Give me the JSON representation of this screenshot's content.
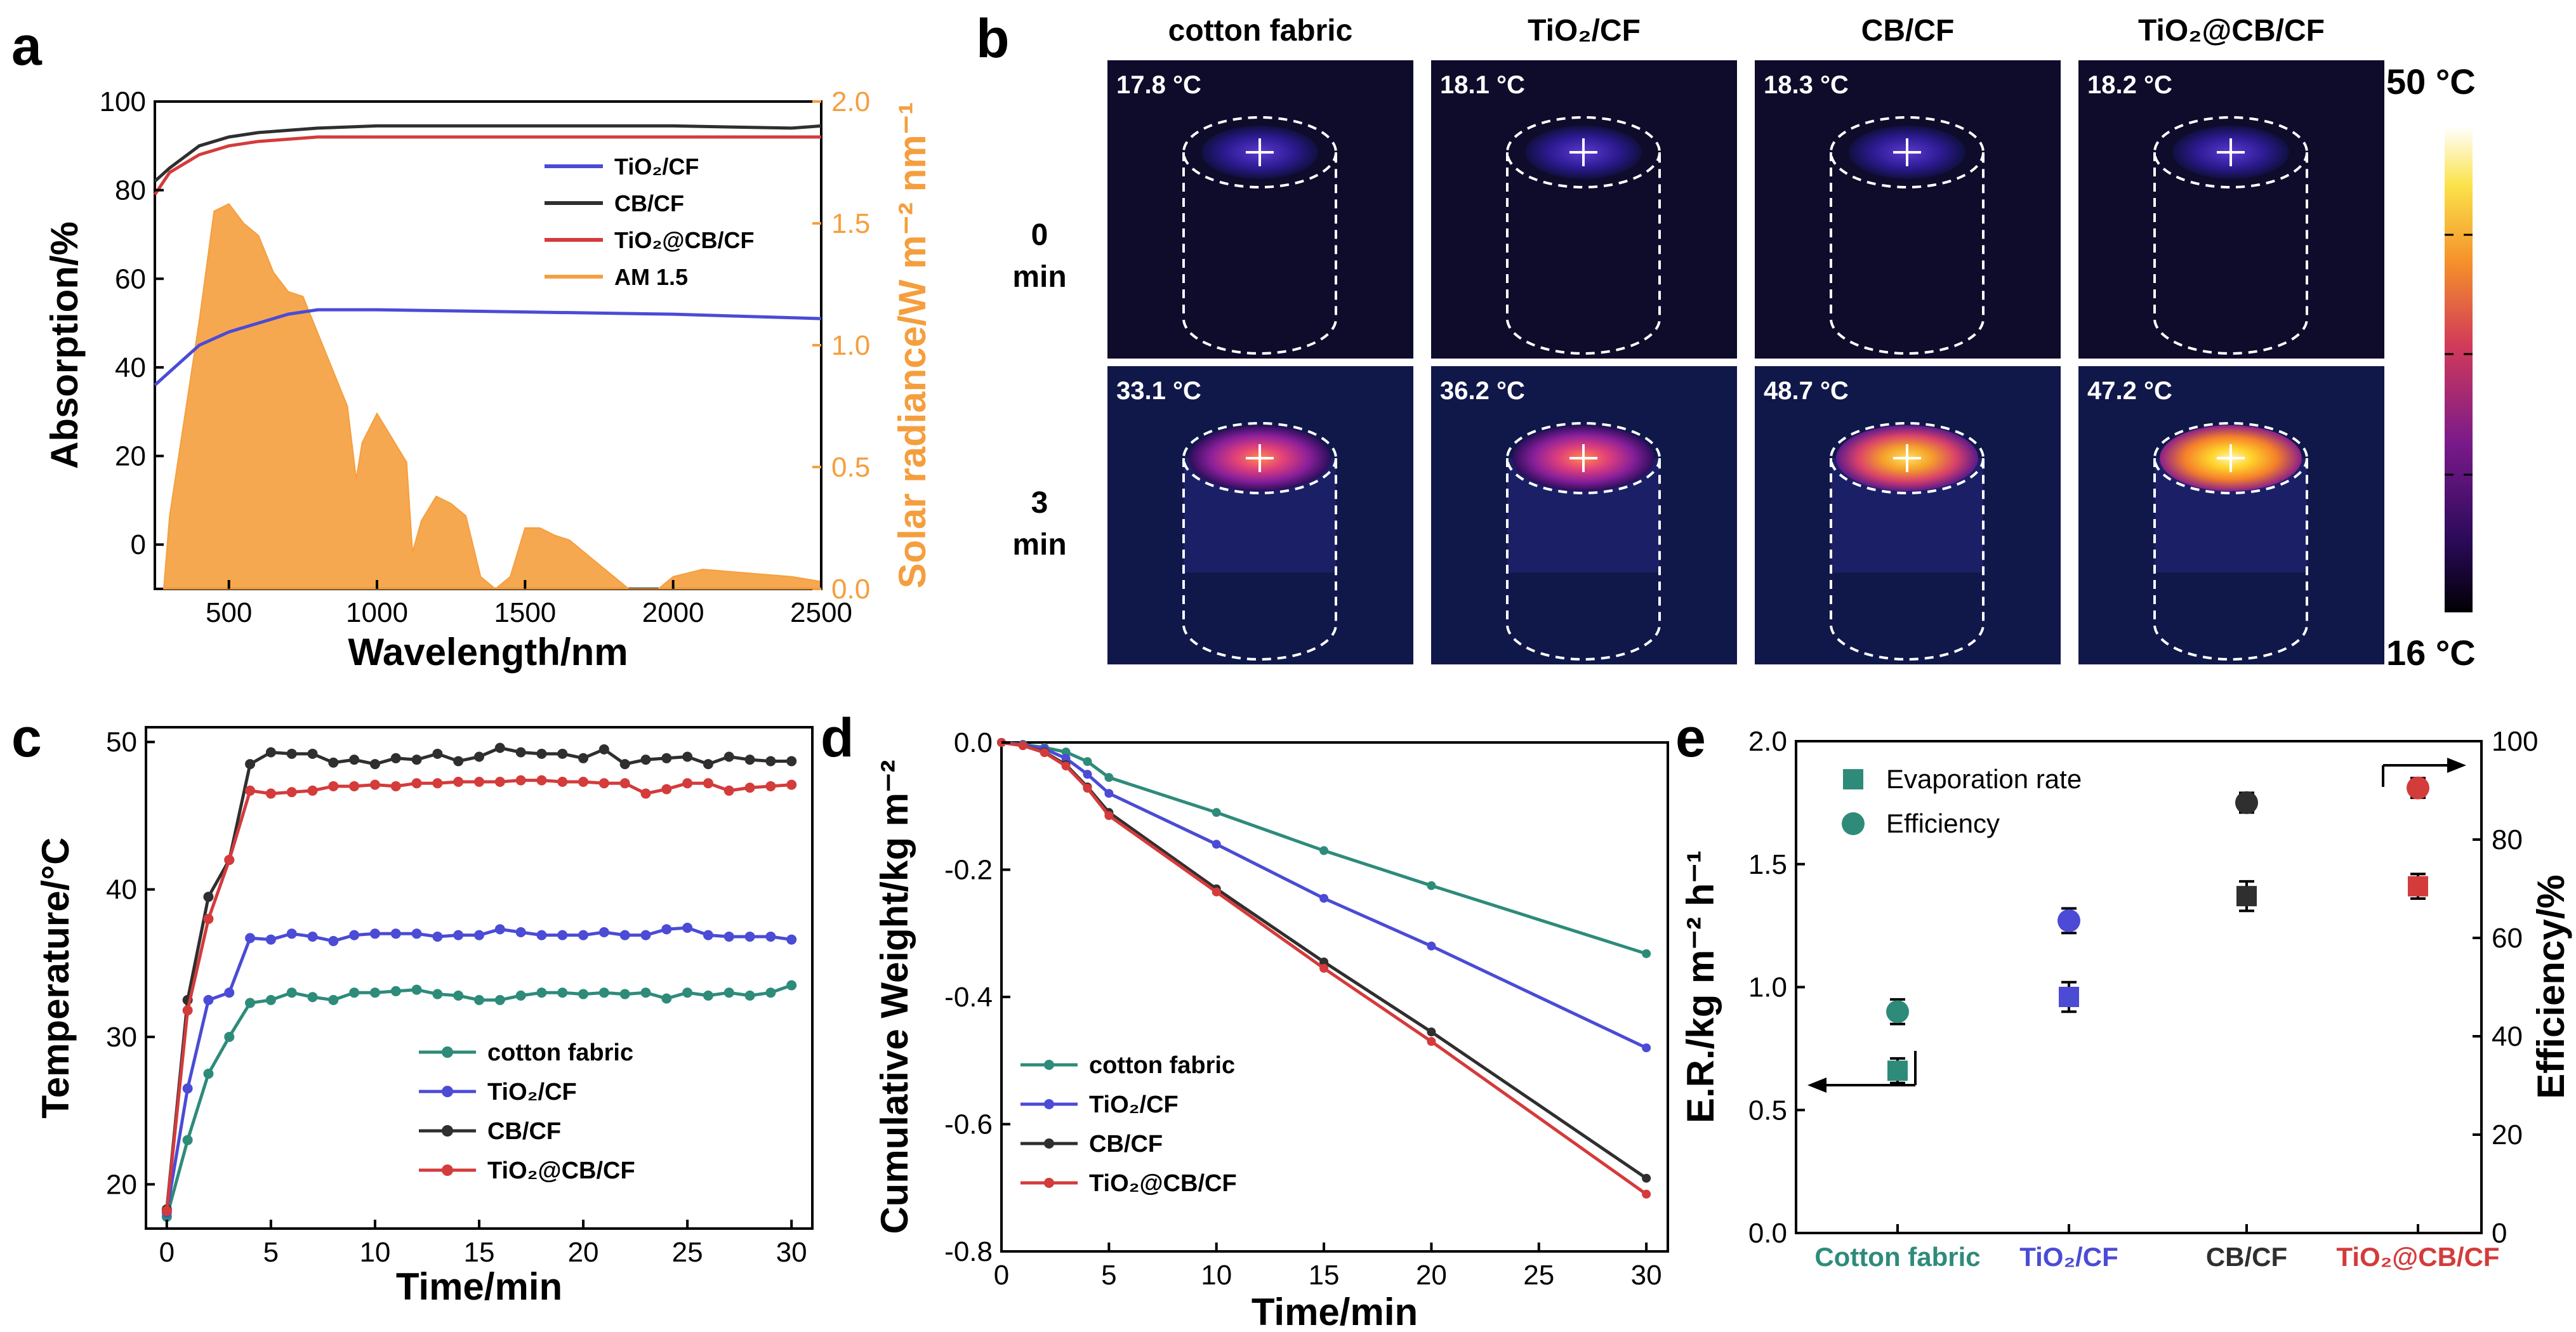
{
  "chart_data": [
    {
      "panel": "a",
      "type": "line",
      "xlabel": "Wavelength/nm",
      "ylabel": "Absorption/%",
      "y2label": "Solar radiance/W m⁻² nm⁻¹",
      "xlim": [
        250,
        2500
      ],
      "ylim": [
        -10,
        100
      ],
      "y2lim": [
        0,
        2.0
      ],
      "xticks": [
        "500",
        "1000",
        "1500",
        "2000",
        "2500"
      ],
      "yticks": [
        "0",
        "20",
        "40",
        "60",
        "80",
        "100"
      ],
      "y2ticks": [
        "0.0",
        "0.5",
        "1.0",
        "1.5",
        "2.0"
      ],
      "legend": [
        "TiO₂/CF",
        "CB/CF",
        "TiO₂@CB/CF",
        "AM 1.5"
      ],
      "series": [
        {
          "name": "TiO₂/CF",
          "color": "#4b4bd6",
          "x": [
            250,
            300,
            400,
            500,
            600,
            700,
            800,
            1000,
            1500,
            2000,
            2500
          ],
          "values": [
            36,
            39,
            45,
            48,
            50,
            52,
            53,
            53,
            52.5,
            52,
            51
          ]
        },
        {
          "name": "CB/CF",
          "color": "#2f2f2f",
          "x": [
            250,
            300,
            400,
            500,
            600,
            800,
            1000,
            1500,
            2000,
            2400,
            2500
          ],
          "values": [
            82,
            85,
            90,
            92,
            93,
            94,
            94.5,
            94.5,
            94.5,
            94,
            94.5
          ]
        },
        {
          "name": "TiO₂@CB/CF",
          "color": "#d43b3b",
          "x": [
            250,
            300,
            400,
            500,
            600,
            800,
            1000,
            1500,
            2000,
            2500
          ],
          "values": [
            79,
            84,
            88,
            90,
            91,
            92,
            92,
            92,
            92,
            92
          ]
        },
        {
          "name": "AM 1.5",
          "color": "#f59e3d",
          "x": [
            280,
            300,
            350,
            400,
            450,
            500,
            550,
            600,
            650,
            700,
            750,
            800,
            850,
            900,
            930,
            950,
            1000,
            1050,
            1100,
            1120,
            1150,
            1200,
            1250,
            1300,
            1350,
            1400,
            1450,
            1500,
            1550,
            1600,
            1650,
            1700,
            1750,
            1800,
            1850,
            1950,
            2000,
            2100,
            2200,
            2300,
            2400,
            2500
          ],
          "values": [
            0,
            0.3,
            0.7,
            1.1,
            1.55,
            1.58,
            1.5,
            1.45,
            1.3,
            1.22,
            1.2,
            1.05,
            0.9,
            0.75,
            0.45,
            0.6,
            0.72,
            0.62,
            0.52,
            0.15,
            0.28,
            0.38,
            0.35,
            0.3,
            0.05,
            0,
            0.05,
            0.25,
            0.25,
            0.22,
            0.2,
            0.15,
            0.1,
            0.05,
            0,
            0,
            0.05,
            0.08,
            0.07,
            0.06,
            0.05,
            0.03
          ]
        }
      ]
    },
    {
      "panel": "c",
      "type": "line",
      "xlabel": "Time/min",
      "ylabel": "Temperature/°C",
      "xlim": [
        -1,
        31
      ],
      "ylim": [
        17,
        51
      ],
      "xticks": [
        "0",
        "5",
        "10",
        "15",
        "20",
        "25",
        "30"
      ],
      "yticks": [
        "20",
        "30",
        "40",
        "50"
      ],
      "legend": [
        "cotton fabric",
        "TiO₂/CF",
        "CB/CF",
        "TiO₂@CB/CF"
      ],
      "x": [
        0,
        1,
        2,
        3,
        4,
        5,
        6,
        7,
        8,
        9,
        10,
        11,
        12,
        13,
        14,
        15,
        16,
        17,
        18,
        19,
        20,
        21,
        22,
        23,
        24,
        25,
        26,
        27,
        28,
        29,
        30
      ],
      "series": [
        {
          "name": "cotton fabric",
          "color": "#2e8b7a",
          "values": [
            17.8,
            23,
            27.5,
            30,
            32.3,
            32.5,
            33,
            32.7,
            32.5,
            33,
            33,
            33.1,
            33.2,
            32.9,
            32.8,
            32.5,
            32.5,
            32.8,
            33,
            33,
            32.9,
            33,
            32.9,
            33,
            32.6,
            33,
            32.8,
            33,
            32.8,
            33,
            33.5
          ]
        },
        {
          "name": "TiO₂/CF",
          "color": "#4b4bd6",
          "values": [
            18.1,
            26.5,
            32.5,
            33,
            36.7,
            36.6,
            37,
            36.8,
            36.5,
            36.9,
            37,
            37,
            37,
            36.8,
            36.9,
            36.9,
            37.3,
            37.1,
            36.9,
            36.9,
            36.9,
            37.1,
            36.9,
            36.9,
            37.3,
            37.4,
            36.9,
            36.8,
            36.8,
            36.8,
            36.6
          ]
        },
        {
          "name": "CB/CF",
          "color": "#2f2f2f",
          "values": [
            18.3,
            32.5,
            39.5,
            42,
            48.5,
            49.3,
            49.2,
            49.2,
            48.6,
            48.8,
            48.5,
            48.9,
            48.8,
            49.2,
            48.7,
            49,
            49.6,
            49.3,
            49.2,
            49.2,
            48.9,
            49.5,
            48.5,
            48.8,
            48.9,
            49,
            48.5,
            49,
            48.8,
            48.7,
            48.7
          ]
        },
        {
          "name": "TiO₂@CB/CF",
          "color": "#d43b3b",
          "values": [
            18.2,
            31.8,
            38,
            42,
            46.7,
            46.5,
            46.6,
            46.7,
            47,
            47,
            47.1,
            47,
            47.2,
            47.2,
            47.3,
            47.3,
            47.3,
            47.4,
            47.4,
            47.3,
            47.3,
            47.2,
            47.2,
            46.5,
            46.8,
            47.2,
            47.2,
            46.7,
            46.9,
            47,
            47.1
          ]
        }
      ]
    },
    {
      "panel": "d",
      "type": "line",
      "xlabel": "Time/min",
      "ylabel": "Cumulative Weight/kg m⁻²",
      "xlim": [
        0,
        31
      ],
      "ylim": [
        -0.8,
        0.0
      ],
      "xticks": [
        "0",
        "5",
        "10",
        "15",
        "20",
        "25",
        "30"
      ],
      "yticks": [
        "0.0",
        "-0.2",
        "-0.4",
        "-0.6",
        "-0.8"
      ],
      "legend": [
        "cotton fabric",
        "TiO₂/CF",
        "CB/CF",
        "TiO₂@CB/CF"
      ],
      "x": [
        0,
        1,
        2,
        3,
        4,
        5,
        10,
        15,
        20,
        30
      ],
      "series": [
        {
          "name": "cotton fabric",
          "color": "#2e8b7a",
          "values": [
            0,
            -0.003,
            -0.008,
            -0.015,
            -0.03,
            -0.055,
            -0.11,
            -0.17,
            -0.225,
            -0.332
          ]
        },
        {
          "name": "TiO₂/CF",
          "color": "#4b4bd6",
          "values": [
            0,
            -0.004,
            -0.01,
            -0.025,
            -0.05,
            -0.08,
            -0.16,
            -0.245,
            -0.32,
            -0.48
          ]
        },
        {
          "name": "CB/CF",
          "color": "#2f2f2f",
          "values": [
            0,
            -0.005,
            -0.015,
            -0.035,
            -0.07,
            -0.11,
            -0.23,
            -0.345,
            -0.455,
            -0.685
          ]
        },
        {
          "name": "TiO₂@CB/CF",
          "color": "#d43b3b",
          "values": [
            0,
            -0.005,
            -0.016,
            -0.037,
            -0.072,
            -0.115,
            -0.235,
            -0.355,
            -0.47,
            -0.71
          ]
        }
      ]
    },
    {
      "panel": "e",
      "type": "scatter",
      "ylabel": "E.R./kg m⁻² h⁻¹",
      "y2label": "Efficiency/%",
      "ylim": [
        0.0,
        2.0
      ],
      "y2lim": [
        0,
        100
      ],
      "yticks": [
        "0.0",
        "0.5",
        "1.0",
        "1.5",
        "2.0"
      ],
      "y2ticks": [
        "0",
        "20",
        "40",
        "60",
        "80",
        "100"
      ],
      "categories": [
        "Cotton fabric",
        "TiO₂/CF",
        "CB/CF",
        "TiO₂@CB/CF"
      ],
      "category_colors": [
        "#2e8b7a",
        "#4b4bd6",
        "#2f2f2f",
        "#d43b3b"
      ],
      "legend": [
        "Evaporation rate",
        "Efficiency"
      ],
      "series": [
        {
          "name": "Evaporation rate",
          "marker": "square",
          "values": [
            0.66,
            0.96,
            1.37,
            1.41
          ],
          "errors": [
            0.05,
            0.06,
            0.06,
            0.05
          ]
        },
        {
          "name": "Efficiency",
          "marker": "circle",
          "values": [
            45,
            63.5,
            87.5,
            90.5
          ],
          "errors": [
            2.5,
            2.5,
            2,
            2
          ]
        }
      ]
    }
  ],
  "panel_labels": {
    "a": "a",
    "b": "b",
    "c": "c",
    "d": "d",
    "e": "e"
  },
  "thermal": {
    "columns": [
      "cotton fabric",
      "TiO₂/CF",
      "CB/CF",
      "TiO₂@CB/CF"
    ],
    "rows": [
      {
        "label_top": "0",
        "label_bottom": "min",
        "temps": [
          "17.8 °C",
          "18.1 °C",
          "18.3 °C",
          "18.2 °C"
        ],
        "spot_levels": [
          0.0,
          0.0,
          0.0,
          0.0
        ]
      },
      {
        "label_top": "3",
        "label_bottom": "min",
        "temps": [
          "33.1 °C",
          "36.2 °C",
          "48.7 °C",
          "47.2 °C"
        ],
        "spot_levels": [
          0.5,
          0.6,
          0.97,
          0.92
        ]
      }
    ],
    "scale_max": "50 °C",
    "scale_min": "16 °C"
  }
}
